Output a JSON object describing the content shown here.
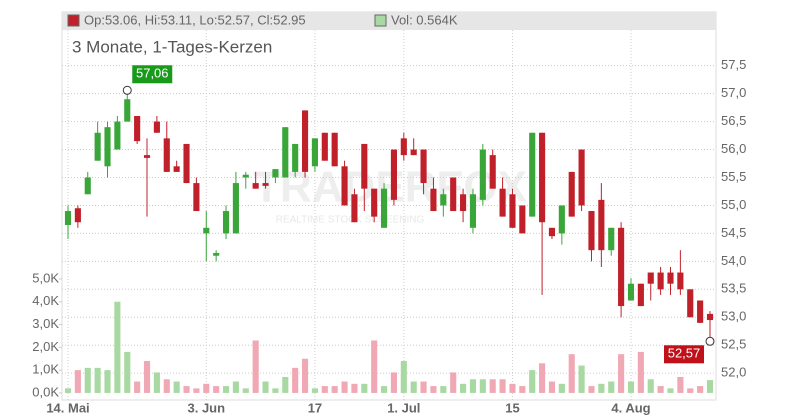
{
  "chart_data": {
    "type": "candlestick",
    "legend": [
      "Op:53.06, Hi:53.11, Lo:52.57, Cl:52.95",
      "Vol: 0.564K"
    ],
    "subtitle": "3 Monate, 1-Tages-Kerzen",
    "watermark": [
      "TRADERFOX",
      "REALTIME STOCK SCREENING"
    ],
    "annotations": [
      {
        "text": "57,06"
      },
      {
        "text": "52,57"
      }
    ],
    "up_color": "#3aa63a",
    "down_color": "#c0202a",
    "volume_up_color": "#a9d9a2",
    "volume_down_color": "#f0a9b4",
    "categories": [
      "14. Mai",
      null,
      null,
      null,
      null,
      null,
      null,
      null,
      null,
      null,
      null,
      null,
      null,
      null,
      "3. Jun",
      null,
      null,
      null,
      null,
      null,
      null,
      null,
      null,
      null,
      null,
      "17",
      null,
      null,
      null,
      null,
      null,
      null,
      null,
      null,
      "1. Jul",
      null,
      null,
      null,
      null,
      null,
      null,
      null,
      null,
      null,
      null,
      "15",
      null,
      null,
      null,
      null,
      null,
      null,
      null,
      null,
      null,
      null,
      null,
      "4. Aug",
      null,
      null,
      null,
      null,
      null,
      null,
      null,
      null
    ],
    "open": [
      54.65,
      54.95,
      55.2,
      55.8,
      55.7,
      56.0,
      56.5,
      56.6,
      55.9,
      56.5,
      56.2,
      55.7,
      56.1,
      55.4,
      54.5,
      54.1,
      54.5,
      54.5,
      55.5,
      55.4,
      55.4,
      55.5,
      55.5,
      55.6,
      56.7,
      55.7,
      56.3,
      56.3,
      55.7,
      55.2,
      56.1,
      55.3,
      54.6,
      56.0,
      56.2,
      56.0,
      56.0,
      55.3,
      55.0,
      55.5,
      55.2,
      54.6,
      55.1,
      55.9,
      55.3,
      55.2,
      55.0,
      54.8,
      56.3,
      54.6,
      54.5,
      55.6,
      56.0,
      54.9,
      55.1,
      54.2,
      54.6,
      53.3,
      53.6,
      53.8,
      53.8,
      53.8,
      53.8,
      53.5,
      53.3,
      53.06
    ],
    "high": [
      55.0,
      55.0,
      55.6,
      56.5,
      56.5,
      56.6,
      57.06,
      56.6,
      56.2,
      56.6,
      56.5,
      55.8,
      56.1,
      55.5,
      54.9,
      54.2,
      55.0,
      55.6,
      55.6,
      55.6,
      55.6,
      55.6,
      56.4,
      56.1,
      56.7,
      56.2,
      56.3,
      56.3,
      55.8,
      55.3,
      56.1,
      55.3,
      55.4,
      56.0,
      56.3,
      56.2,
      56.0,
      55.5,
      55.3,
      55.5,
      55.3,
      55.3,
      56.1,
      56.0,
      55.5,
      55.3,
      55.0,
      56.3,
      56.3,
      54.6,
      55.0,
      55.6,
      56.0,
      54.9,
      55.4,
      54.6,
      54.7,
      53.7,
      53.6,
      53.8,
      53.9,
      53.9,
      54.2,
      53.5,
      53.3,
      53.11
    ],
    "low": [
      54.4,
      54.6,
      55.2,
      55.8,
      55.5,
      56.0,
      56.5,
      56.1,
      54.8,
      56.3,
      55.6,
      55.6,
      55.4,
      54.9,
      54.0,
      54.0,
      54.4,
      54.5,
      55.3,
      55.3,
      55.3,
      55.4,
      55.5,
      55.5,
      55.5,
      55.6,
      55.8,
      55.7,
      55.0,
      54.7,
      54.9,
      54.7,
      54.6,
      55.0,
      55.8,
      55.9,
      55.2,
      54.9,
      54.8,
      54.9,
      54.7,
      54.5,
      55.0,
      55.3,
      54.8,
      54.6,
      54.5,
      54.8,
      53.4,
      54.4,
      54.3,
      54.8,
      54.9,
      54.0,
      53.9,
      54.1,
      53.0,
      53.3,
      53.2,
      53.3,
      53.4,
      53.4,
      53.4,
      53.0,
      52.9,
      52.57
    ],
    "close": [
      54.9,
      54.7,
      55.5,
      56.3,
      56.4,
      56.5,
      56.9,
      56.15,
      55.85,
      56.3,
      55.6,
      55.6,
      55.4,
      54.9,
      54.6,
      54.15,
      54.9,
      55.4,
      55.55,
      55.3,
      55.35,
      55.65,
      56.4,
      56.1,
      55.6,
      56.2,
      55.8,
      55.7,
      55.0,
      54.7,
      55.3,
      54.8,
      55.3,
      55.1,
      55.9,
      55.9,
      55.4,
      54.9,
      55.2,
      54.9,
      54.9,
      55.2,
      56.0,
      55.3,
      54.8,
      54.6,
      54.5,
      56.3,
      54.7,
      54.45,
      55.0,
      54.8,
      55.0,
      54.2,
      54.2,
      54.6,
      53.2,
      53.6,
      53.2,
      53.6,
      53.5,
      53.6,
      53.5,
      53.0,
      52.9,
      52.95
    ],
    "volume": [
      0.2,
      1.0,
      1.1,
      1.1,
      1.0,
      4.0,
      1.8,
      0.5,
      1.4,
      0.9,
      0.6,
      0.5,
      0.3,
      0.2,
      0.4,
      0.3,
      0.3,
      0.5,
      0.2,
      2.3,
      0.5,
      0.2,
      0.7,
      1.1,
      1.5,
      0.2,
      0.3,
      0.3,
      0.5,
      0.4,
      0.4,
      2.3,
      0.3,
      0.9,
      1.4,
      0.5,
      0.5,
      0.3,
      0.3,
      0.9,
      0.4,
      0.6,
      0.6,
      0.6,
      0.6,
      0.4,
      0.3,
      1.0,
      1.3,
      0.5,
      0.4,
      1.7,
      1.2,
      0.3,
      0.4,
      0.5,
      1.7,
      0.5,
      1.8,
      0.6,
      0.3,
      0.2,
      0.7,
      0.2,
      0.3,
      0.564
    ],
    "ylim": [
      51.52,
      58.46
    ],
    "yticks": [
      {
        "value": 52.0,
        "label": "52,0"
      },
      {
        "value": 52.5,
        "label": "52,5"
      },
      {
        "value": 53.0,
        "label": "53,0"
      },
      {
        "value": 53.5,
        "label": "53,5"
      },
      {
        "value": 54.0,
        "label": "54,0"
      },
      {
        "value": 54.5,
        "label": "54,5"
      },
      {
        "value": 55.0,
        "label": "55,0"
      },
      {
        "value": 55.5,
        "label": "55,5"
      },
      {
        "value": 56.0,
        "label": "56,0"
      },
      {
        "value": 56.5,
        "label": "56,5"
      },
      {
        "value": 57.0,
        "label": "57,0"
      },
      {
        "value": 57.5,
        "label": "57,5"
      }
    ],
    "y2lim": [
      -0.31,
      16.71
    ],
    "y2ticks": [
      {
        "value": 0,
        "label": "0,0K"
      },
      {
        "value": 1,
        "label": "1,0K"
      },
      {
        "value": 2,
        "label": "2,0K"
      },
      {
        "value": 3,
        "label": "3,0K"
      },
      {
        "value": 4,
        "label": "4,0K"
      },
      {
        "value": 5,
        "label": "5,0K"
      }
    ],
    "grid": true
  }
}
